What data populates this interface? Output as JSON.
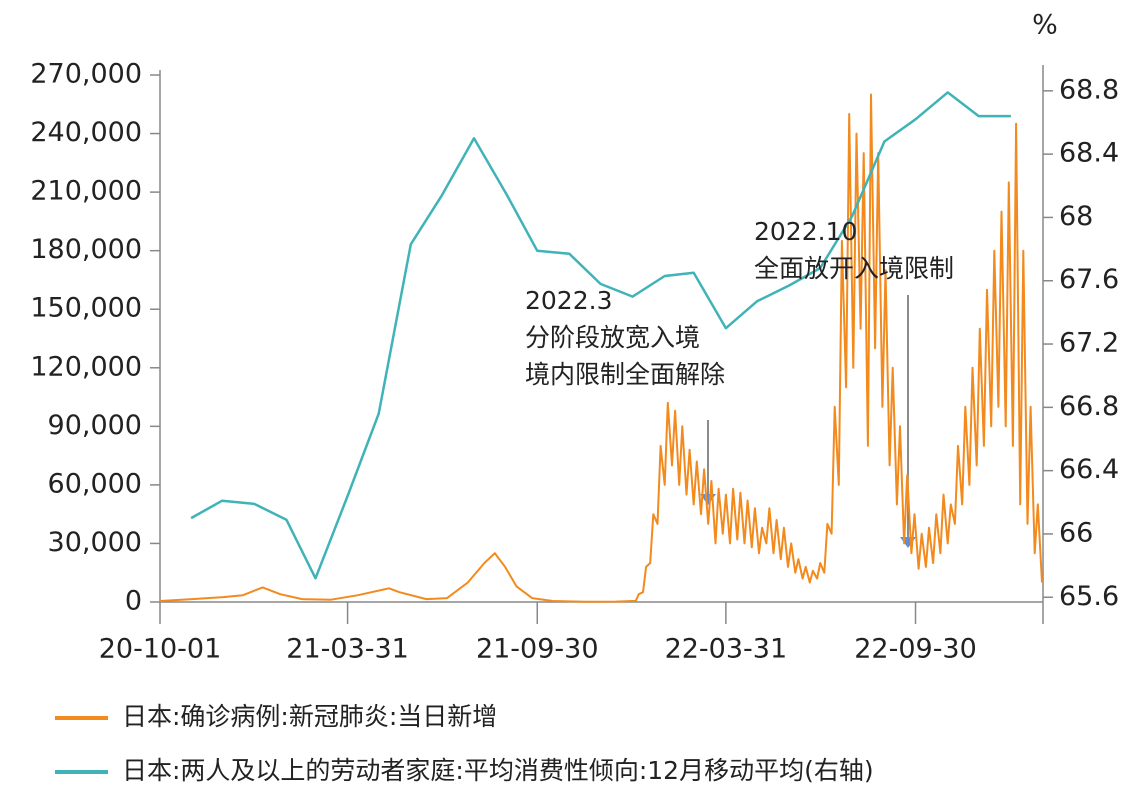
{
  "chart_data": {
    "type": "line",
    "y2_label": "%",
    "xlim": [
      "2020-10-01",
      "2023-01-31"
    ],
    "xticks": [
      {
        "value": "2020-10-01",
        "label": "20-10-01"
      },
      {
        "value": "2021-03-31",
        "label": "21-03-31"
      },
      {
        "value": "2021-09-30",
        "label": "21-09-30"
      },
      {
        "value": "2022-03-31",
        "label": "22-03-31"
      },
      {
        "value": "2022-09-30",
        "label": "22-09-30"
      }
    ],
    "ylim": [
      0,
      270000
    ],
    "yticks": [
      0,
      {
        "value": 30000,
        "label": "30,000"
      },
      {
        "value": 60000,
        "label": "60,000"
      },
      {
        "value": 90000,
        "label": "90,000"
      },
      {
        "value": 120000,
        "label": "120,000"
      },
      {
        "value": 150000,
        "label": "150,000"
      },
      {
        "value": 180000,
        "label": "180,000"
      },
      {
        "value": 210000,
        "label": "210,000"
      },
      {
        "value": 240000,
        "label": "240,000"
      },
      {
        "value": 270000,
        "label": "270,000"
      }
    ],
    "y2lim": [
      65.57,
      68.9
    ],
    "y2ticks": [
      65.6,
      66,
      66.4,
      66.8,
      67.2,
      67.6,
      68,
      68.4,
      68.8
    ],
    "annotations": [
      {
        "lines": [
          "2022.3",
          "分阶段放宽入境",
          "境内限制全面解除"
        ]
      },
      {
        "lines": [
          "2022.10",
          "全面放开入境限制"
        ]
      }
    ],
    "series": [
      {
        "name": "日本:确诊病例:新冠肺炎:当日新增",
        "color": "#f28a1e",
        "x": [
          "2020-10-01",
          "2020-11-01",
          "2020-12-01",
          "2020-12-20",
          "2021-01-08",
          "2021-01-25",
          "2021-02-15",
          "2021-03-15",
          "2021-04-10",
          "2021-05-10",
          "2021-05-20",
          "2021-06-15",
          "2021-07-05",
          "2021-07-25",
          "2021-08-10",
          "2021-08-20",
          "2021-08-30",
          "2021-09-10",
          "2021-09-25",
          "2021-10-15",
          "2021-11-15",
          "2021-12-15",
          "2021-12-31",
          "2022-01-03",
          "2022-01-06",
          "2022-01-10",
          "2022-01-13",
          "2022-01-17",
          "2022-01-20",
          "2022-01-24",
          "2022-01-27",
          "2022-01-31",
          "2022-02-03",
          "2022-02-07",
          "2022-02-10",
          "2022-02-14",
          "2022-02-17",
          "2022-02-21",
          "2022-02-24",
          "2022-02-28",
          "2022-03-03",
          "2022-03-07",
          "2022-03-10",
          "2022-03-14",
          "2022-03-17",
          "2022-03-21",
          "2022-03-24",
          "2022-03-28",
          "2022-03-31",
          "2022-04-04",
          "2022-04-07",
          "2022-04-11",
          "2022-04-14",
          "2022-04-18",
          "2022-04-21",
          "2022-04-25",
          "2022-04-28",
          "2022-05-02",
          "2022-05-05",
          "2022-05-09",
          "2022-05-12",
          "2022-05-16",
          "2022-05-19",
          "2022-05-23",
          "2022-05-26",
          "2022-05-30",
          "2022-06-02",
          "2022-06-06",
          "2022-06-09",
          "2022-06-13",
          "2022-06-16",
          "2022-06-20",
          "2022-06-23",
          "2022-06-27",
          "2022-06-30",
          "2022-07-04",
          "2022-07-07",
          "2022-07-11",
          "2022-07-14",
          "2022-07-18",
          "2022-07-21",
          "2022-07-25",
          "2022-07-28",
          "2022-08-01",
          "2022-08-04",
          "2022-08-08",
          "2022-08-11",
          "2022-08-15",
          "2022-08-18",
          "2022-08-22",
          "2022-08-25",
          "2022-08-29",
          "2022-09-01",
          "2022-09-05",
          "2022-09-08",
          "2022-09-12",
          "2022-09-15",
          "2022-09-19",
          "2022-09-22",
          "2022-09-26",
          "2022-09-29",
          "2022-10-03",
          "2022-10-06",
          "2022-10-10",
          "2022-10-13",
          "2022-10-17",
          "2022-10-20",
          "2022-10-24",
          "2022-10-27",
          "2022-10-31",
          "2022-11-03",
          "2022-11-07",
          "2022-11-10",
          "2022-11-14",
          "2022-11-17",
          "2022-11-21",
          "2022-11-24",
          "2022-11-28",
          "2022-12-01",
          "2022-12-05",
          "2022-12-08",
          "2022-12-12",
          "2022-12-15",
          "2022-12-19",
          "2022-12-22",
          "2022-12-26",
          "2022-12-29",
          "2023-01-02",
          "2023-01-05",
          "2023-01-09",
          "2023-01-12",
          "2023-01-16",
          "2023-01-19",
          "2023-01-23",
          "2023-01-26",
          "2023-01-30"
        ],
        "values": [
          500,
          1500,
          2500,
          3500,
          7500,
          4000,
          1500,
          1200,
          3500,
          7000,
          5000,
          1500,
          2000,
          10000,
          20000,
          25000,
          18000,
          8000,
          2000,
          500,
          150,
          200,
          500,
          500,
          4000,
          5000,
          18000,
          20000,
          45000,
          40000,
          80000,
          60000,
          102000,
          70000,
          98000,
          60000,
          90000,
          55000,
          78000,
          50000,
          72000,
          45000,
          68000,
          40000,
          62000,
          30000,
          58000,
          35000,
          55000,
          30000,
          58000,
          32000,
          56000,
          30000,
          52000,
          28000,
          48000,
          25000,
          38000,
          30000,
          48000,
          25000,
          42000,
          22000,
          38000,
          18000,
          30000,
          15000,
          22000,
          12000,
          18000,
          10000,
          16000,
          12000,
          20000,
          15000,
          40000,
          35000,
          100000,
          60000,
          185000,
          110000,
          250000,
          120000,
          240000,
          140000,
          230000,
          80000,
          260000,
          130000,
          230000,
          100000,
          170000,
          70000,
          120000,
          50000,
          90000,
          30000,
          65000,
          25000,
          45000,
          17000,
          35000,
          18000,
          38000,
          20000,
          45000,
          25000,
          55000,
          30000,
          50000,
          40000,
          80000,
          50000,
          100000,
          60000,
          120000,
          70000,
          140000,
          80000,
          160000,
          90000,
          180000,
          100000,
          200000,
          90000,
          215000,
          80000,
          245000,
          50000,
          180000,
          40000,
          100000,
          25000,
          50000,
          10000
        ]
      },
      {
        "name": "日本:两人及以上的劳动者家庭:平均消费性倾向:12月移动平均(右轴)",
        "color": "#3fb3b8",
        "axis": "y2",
        "x": [
          "2020-10-31",
          "2020-11-30",
          "2020-12-31",
          "2021-01-31",
          "2021-02-28",
          "2021-03-31",
          "2021-04-30",
          "2021-05-31",
          "2021-06-30",
          "2021-07-31",
          "2021-08-31",
          "2021-09-30",
          "2021-10-31",
          "2021-11-30",
          "2021-12-31",
          "2022-01-31",
          "2022-02-28",
          "2022-03-31",
          "2022-04-30",
          "2022-05-31",
          "2022-06-30",
          "2022-07-31",
          "2022-08-31",
          "2022-09-30",
          "2022-10-31",
          "2022-11-30",
          "2022-12-31"
        ],
        "values": [
          66.1,
          66.21,
          66.19,
          66.09,
          65.72,
          66.24,
          66.76,
          67.83,
          68.14,
          68.5,
          68.15,
          67.79,
          67.77,
          67.58,
          67.5,
          67.63,
          67.65,
          67.3,
          67.47,
          67.57,
          67.68,
          68.01,
          68.48,
          68.62,
          68.79,
          68.64,
          68.64
        ]
      }
    ]
  }
}
